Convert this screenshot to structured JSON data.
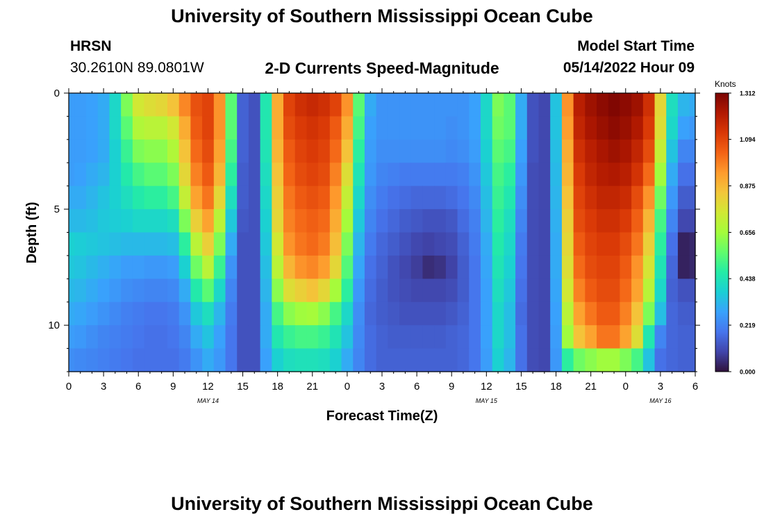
{
  "header": {
    "title": "University of Southern Mississippi Ocean Cube",
    "station": "HRSN",
    "coordinates": "30.2610N  89.0801W",
    "subtitle": "2-D Currents Speed-Magnitude",
    "model_start_label": "Model Start Time",
    "model_start_value": "05/14/2022 Hour 09"
  },
  "footer": {
    "title": "University of Southern Mississippi Ocean Cube"
  },
  "colors": {
    "ramp": [
      "#30123b",
      "#4145ab",
      "#4675ed",
      "#39a2fc",
      "#1bcfd4",
      "#24eca6",
      "#61fc6c",
      "#a4fc3b",
      "#d1e834",
      "#f3c63a",
      "#fe9b2d",
      "#f36315",
      "#d93806",
      "#b11901",
      "#7a0402"
    ]
  },
  "chart_data": {
    "type": "heatmap",
    "title": "2-D Currents Speed-Magnitude",
    "xlabel": "Forecast Time(Z)",
    "ylabel": "Depth (ft)",
    "x_ticks": [
      "0",
      "3",
      "6",
      "9",
      "12",
      "15",
      "18",
      "21",
      "0",
      "3",
      "6",
      "9",
      "12",
      "15",
      "18",
      "21",
      "0",
      "3",
      "6"
    ],
    "x_range_hours": [
      0,
      54
    ],
    "date_labels": [
      {
        "text": "MAY 14",
        "hour": 12
      },
      {
        "text": "MAY 15",
        "hour": 36
      },
      {
        "text": "MAY 16",
        "hour": 51
      }
    ],
    "y_ticks": [
      "0",
      "5",
      "10"
    ],
    "y_range_ft": [
      0,
      12
    ],
    "colorbar": {
      "title": "Knots",
      "ticks": [
        "1.312",
        "1.094",
        "0.875",
        "0.656",
        "0.438",
        "0.219",
        "0.000"
      ],
      "range": [
        0,
        1.312
      ]
    },
    "depths_ft": [
      0.5,
      1.5,
      2.5,
      3.5,
      4.5,
      5.5,
      6.5,
      7.5,
      8.5,
      9.5,
      10.5,
      11.5
    ],
    "hours": [
      0,
      1,
      2,
      3,
      4,
      5,
      6,
      7,
      8,
      9,
      10,
      11,
      12,
      13,
      14,
      15,
      16,
      17,
      18,
      19,
      20,
      21,
      22,
      23,
      24,
      25,
      26,
      27,
      28,
      29,
      30,
      31,
      32,
      33,
      34,
      35,
      36,
      37,
      38,
      39,
      40,
      41,
      42,
      43,
      44,
      45,
      46,
      47,
      48,
      49,
      50,
      51,
      52,
      53,
      54
    ],
    "speed_knots": [
      [
        0.27,
        0.27,
        0.28,
        0.3,
        0.4,
        0.6,
        0.75,
        0.78,
        0.8,
        0.85,
        0.97,
        1.07,
        1.1,
        0.95,
        0.55,
        0.15,
        0.12,
        0.45,
        0.9,
        1.1,
        1.15,
        1.17,
        1.15,
        1.1,
        0.95,
        0.55,
        0.3,
        0.25,
        0.25,
        0.25,
        0.25,
        0.25,
        0.25,
        0.25,
        0.25,
        0.28,
        0.4,
        0.6,
        0.55,
        0.3,
        0.12,
        0.1,
        0.35,
        0.95,
        1.2,
        1.25,
        1.28,
        1.3,
        1.28,
        1.25,
        1.15,
        0.8,
        0.42,
        0.32,
        0.3
      ],
      [
        0.27,
        0.27,
        0.28,
        0.3,
        0.4,
        0.55,
        0.68,
        0.7,
        0.7,
        0.75,
        0.9,
        1.05,
        1.1,
        0.95,
        0.55,
        0.15,
        0.12,
        0.45,
        0.9,
        1.08,
        1.12,
        1.14,
        1.12,
        1.05,
        0.9,
        0.52,
        0.28,
        0.25,
        0.25,
        0.25,
        0.25,
        0.25,
        0.25,
        0.24,
        0.25,
        0.28,
        0.4,
        0.58,
        0.55,
        0.3,
        0.12,
        0.1,
        0.35,
        0.93,
        1.18,
        1.23,
        1.26,
        1.28,
        1.26,
        1.22,
        1.12,
        0.78,
        0.4,
        0.28,
        0.26
      ],
      [
        0.27,
        0.27,
        0.28,
        0.3,
        0.38,
        0.5,
        0.6,
        0.62,
        0.62,
        0.68,
        0.85,
        1.02,
        1.08,
        0.92,
        0.52,
        0.15,
        0.12,
        0.44,
        0.88,
        1.05,
        1.1,
        1.12,
        1.1,
        1.02,
        0.85,
        0.48,
        0.27,
        0.24,
        0.24,
        0.24,
        0.24,
        0.24,
        0.24,
        0.23,
        0.24,
        0.27,
        0.38,
        0.55,
        0.52,
        0.28,
        0.12,
        0.1,
        0.34,
        0.9,
        1.15,
        1.2,
        1.23,
        1.25,
        1.23,
        1.18,
        1.08,
        0.72,
        0.35,
        0.22,
        0.22
      ],
      [
        0.27,
        0.28,
        0.3,
        0.32,
        0.38,
        0.46,
        0.52,
        0.55,
        0.55,
        0.6,
        0.8,
        0.98,
        1.05,
        0.88,
        0.48,
        0.14,
        0.12,
        0.42,
        0.85,
        1.03,
        1.08,
        1.1,
        1.08,
        0.98,
        0.78,
        0.44,
        0.26,
        0.22,
        0.21,
        0.2,
        0.2,
        0.2,
        0.2,
        0.2,
        0.21,
        0.25,
        0.36,
        0.52,
        0.48,
        0.26,
        0.11,
        0.1,
        0.33,
        0.88,
        1.12,
        1.18,
        1.21,
        1.22,
        1.2,
        1.14,
        1.02,
        0.65,
        0.3,
        0.18,
        0.18
      ],
      [
        0.3,
        0.3,
        0.32,
        0.35,
        0.38,
        0.42,
        0.46,
        0.48,
        0.48,
        0.52,
        0.72,
        0.92,
        1.0,
        0.8,
        0.42,
        0.14,
        0.12,
        0.4,
        0.82,
        1.0,
        1.05,
        1.07,
        1.05,
        0.94,
        0.72,
        0.4,
        0.24,
        0.2,
        0.18,
        0.17,
        0.16,
        0.16,
        0.16,
        0.17,
        0.19,
        0.23,
        0.34,
        0.5,
        0.45,
        0.24,
        0.11,
        0.1,
        0.32,
        0.85,
        1.1,
        1.15,
        1.18,
        1.18,
        1.16,
        1.08,
        0.95,
        0.58,
        0.26,
        0.14,
        0.14
      ],
      [
        0.33,
        0.33,
        0.34,
        0.36,
        0.37,
        0.38,
        0.4,
        0.4,
        0.4,
        0.42,
        0.6,
        0.82,
        0.92,
        0.7,
        0.36,
        0.13,
        0.12,
        0.38,
        0.8,
        0.98,
        1.02,
        1.04,
        1.02,
        0.9,
        0.66,
        0.36,
        0.22,
        0.18,
        0.16,
        0.14,
        0.13,
        0.12,
        0.12,
        0.13,
        0.17,
        0.21,
        0.32,
        0.48,
        0.42,
        0.22,
        0.11,
        0.1,
        0.31,
        0.82,
        1.08,
        1.12,
        1.15,
        1.15,
        1.12,
        1.04,
        0.88,
        0.52,
        0.22,
        0.1,
        0.1
      ],
      [
        0.38,
        0.37,
        0.36,
        0.35,
        0.34,
        0.33,
        0.33,
        0.33,
        0.33,
        0.34,
        0.48,
        0.7,
        0.82,
        0.6,
        0.3,
        0.12,
        0.12,
        0.36,
        0.75,
        0.95,
        1.0,
        1.02,
        0.99,
        0.86,
        0.6,
        0.32,
        0.2,
        0.16,
        0.14,
        0.12,
        0.1,
        0.09,
        0.1,
        0.11,
        0.15,
        0.2,
        0.3,
        0.46,
        0.4,
        0.2,
        0.11,
        0.1,
        0.3,
        0.8,
        1.05,
        1.1,
        1.12,
        1.12,
        1.08,
        1.0,
        0.82,
        0.48,
        0.18,
        0.03,
        0.04
      ],
      [
        0.36,
        0.35,
        0.33,
        0.31,
        0.29,
        0.27,
        0.27,
        0.26,
        0.26,
        0.27,
        0.38,
        0.58,
        0.7,
        0.5,
        0.25,
        0.12,
        0.12,
        0.34,
        0.7,
        0.88,
        0.95,
        0.97,
        0.93,
        0.8,
        0.54,
        0.29,
        0.18,
        0.15,
        0.12,
        0.1,
        0.08,
        0.05,
        0.06,
        0.09,
        0.14,
        0.19,
        0.29,
        0.44,
        0.38,
        0.19,
        0.11,
        0.1,
        0.3,
        0.78,
        1.02,
        1.08,
        1.1,
        1.1,
        1.05,
        0.95,
        0.76,
        0.44,
        0.16,
        0.03,
        0.04
      ],
      [
        0.33,
        0.32,
        0.3,
        0.28,
        0.26,
        0.24,
        0.23,
        0.22,
        0.22,
        0.23,
        0.3,
        0.46,
        0.55,
        0.4,
        0.22,
        0.12,
        0.12,
        0.32,
        0.62,
        0.78,
        0.82,
        0.85,
        0.8,
        0.66,
        0.48,
        0.26,
        0.17,
        0.14,
        0.12,
        0.11,
        0.1,
        0.1,
        0.1,
        0.11,
        0.14,
        0.19,
        0.28,
        0.42,
        0.36,
        0.18,
        0.11,
        0.1,
        0.29,
        0.75,
        0.98,
        1.05,
        1.08,
        1.08,
        1.02,
        0.92,
        0.7,
        0.4,
        0.15,
        0.12,
        0.12
      ],
      [
        0.3,
        0.29,
        0.27,
        0.25,
        0.23,
        0.21,
        0.2,
        0.19,
        0.19,
        0.2,
        0.25,
        0.36,
        0.42,
        0.32,
        0.2,
        0.12,
        0.12,
        0.3,
        0.52,
        0.62,
        0.65,
        0.66,
        0.62,
        0.52,
        0.4,
        0.24,
        0.16,
        0.14,
        0.13,
        0.12,
        0.12,
        0.12,
        0.12,
        0.13,
        0.15,
        0.19,
        0.28,
        0.4,
        0.34,
        0.17,
        0.11,
        0.1,
        0.28,
        0.7,
        0.92,
        1.0,
        1.05,
        1.05,
        0.98,
        0.85,
        0.6,
        0.34,
        0.16,
        0.14,
        0.14
      ],
      [
        0.27,
        0.26,
        0.24,
        0.22,
        0.21,
        0.2,
        0.19,
        0.18,
        0.18,
        0.19,
        0.22,
        0.3,
        0.35,
        0.28,
        0.19,
        0.12,
        0.12,
        0.3,
        0.45,
        0.5,
        0.52,
        0.52,
        0.5,
        0.44,
        0.35,
        0.23,
        0.17,
        0.15,
        0.14,
        0.14,
        0.14,
        0.14,
        0.14,
        0.15,
        0.16,
        0.19,
        0.28,
        0.4,
        0.34,
        0.18,
        0.11,
        0.1,
        0.27,
        0.65,
        0.85,
        0.92,
        1.0,
        1.0,
        0.92,
        0.78,
        0.45,
        0.22,
        0.16,
        0.15,
        0.15
      ],
      [
        0.24,
        0.23,
        0.22,
        0.21,
        0.2,
        0.19,
        0.18,
        0.18,
        0.18,
        0.18,
        0.2,
        0.25,
        0.3,
        0.26,
        0.19,
        0.12,
        0.12,
        0.28,
        0.38,
        0.42,
        0.43,
        0.43,
        0.42,
        0.38,
        0.3,
        0.22,
        0.17,
        0.15,
        0.15,
        0.15,
        0.15,
        0.15,
        0.15,
        0.15,
        0.16,
        0.19,
        0.27,
        0.38,
        0.32,
        0.18,
        0.11,
        0.1,
        0.26,
        0.48,
        0.58,
        0.62,
        0.65,
        0.65,
        0.6,
        0.52,
        0.35,
        0.18,
        0.16,
        0.15,
        0.15
      ]
    ]
  }
}
